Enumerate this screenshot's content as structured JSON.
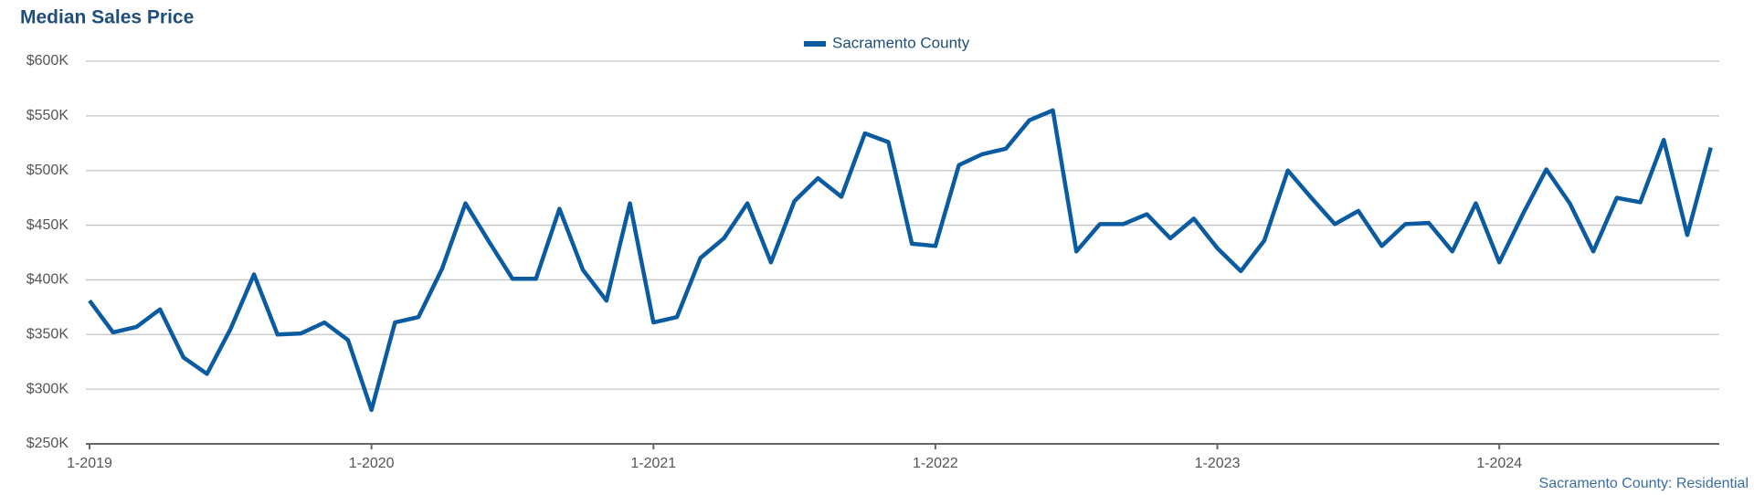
{
  "chart_data": {
    "type": "line",
    "title": "Median Sales Price",
    "footnote": "Sacramento County: Residential",
    "categories": [
      "1-2019",
      null,
      null,
      null,
      null,
      null,
      null,
      null,
      null,
      null,
      null,
      null,
      "1-2020",
      null,
      null,
      null,
      null,
      null,
      null,
      null,
      null,
      null,
      null,
      null,
      "1-2021",
      null,
      null,
      null,
      null,
      null,
      null,
      null,
      null,
      null,
      null,
      null,
      "1-2022",
      null,
      null,
      null,
      null,
      null,
      null,
      null,
      null,
      null,
      null,
      null,
      "1-2023",
      null,
      null,
      null,
      null,
      null,
      null,
      null,
      null,
      null,
      null,
      null,
      "1-2024",
      null,
      null,
      null,
      null,
      null,
      null,
      null,
      null,
      null
    ],
    "series": [
      {
        "name": "Sacramento County",
        "color": "#0b5ba1",
        "values": [
          381000,
          352000,
          357000,
          373000,
          329000,
          314000,
          355000,
          405000,
          350000,
          351000,
          361000,
          345000,
          281000,
          361000,
          366000,
          410000,
          470000,
          435000,
          401000,
          401000,
          465000,
          409000,
          381000,
          470000,
          361000,
          366000,
          420000,
          438000,
          470000,
          416000,
          472000,
          493000,
          476000,
          534000,
          526000,
          433000,
          431000,
          505000,
          515000,
          520000,
          546000,
          555000,
          426000,
          451000,
          451000,
          460000,
          438000,
          456000,
          429000,
          408000,
          436000,
          500000,
          475000,
          451000,
          463000,
          431000,
          451000,
          452000,
          426000,
          470000,
          416000,
          460000,
          501000,
          470000,
          426000,
          475000,
          471000,
          528000,
          441000,
          521000
        ]
      }
    ],
    "ylim": [
      250000,
      600000
    ],
    "yticks": [
      {
        "value": 250000,
        "label": "$250K"
      },
      {
        "value": 300000,
        "label": "$300K"
      },
      {
        "value": 350000,
        "label": "$350K"
      },
      {
        "value": 400000,
        "label": "$400K"
      },
      {
        "value": 450000,
        "label": "$450K"
      },
      {
        "value": 500000,
        "label": "$500K"
      },
      {
        "value": 550000,
        "label": "$550K"
      },
      {
        "value": 600000,
        "label": "$600K"
      }
    ],
    "grid": true,
    "legend": "top"
  }
}
